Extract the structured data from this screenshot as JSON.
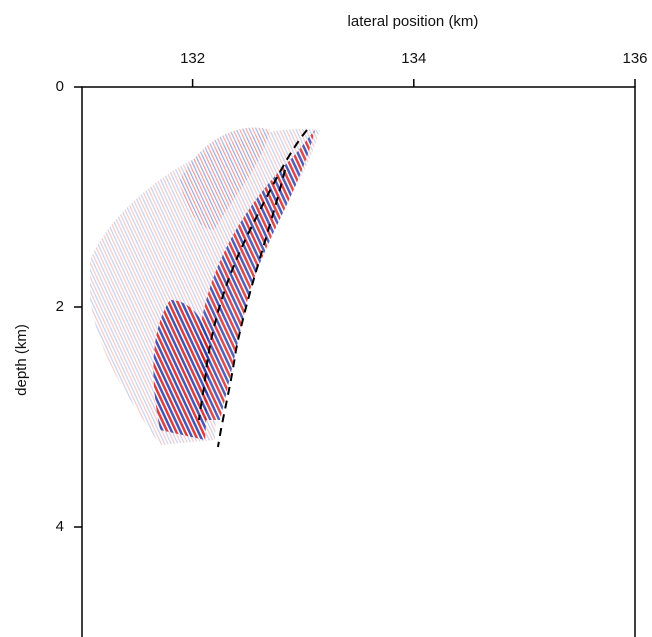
{
  "chart_data": {
    "type": "image",
    "xlabel": "lateral position (km)",
    "ylabel": "depth (km)",
    "xlim": [
      131,
      136
    ],
    "xticks": [
      132,
      134,
      136
    ],
    "ylim": [
      0,
      5
    ],
    "yticks": [
      0,
      2,
      4
    ]
  }
}
